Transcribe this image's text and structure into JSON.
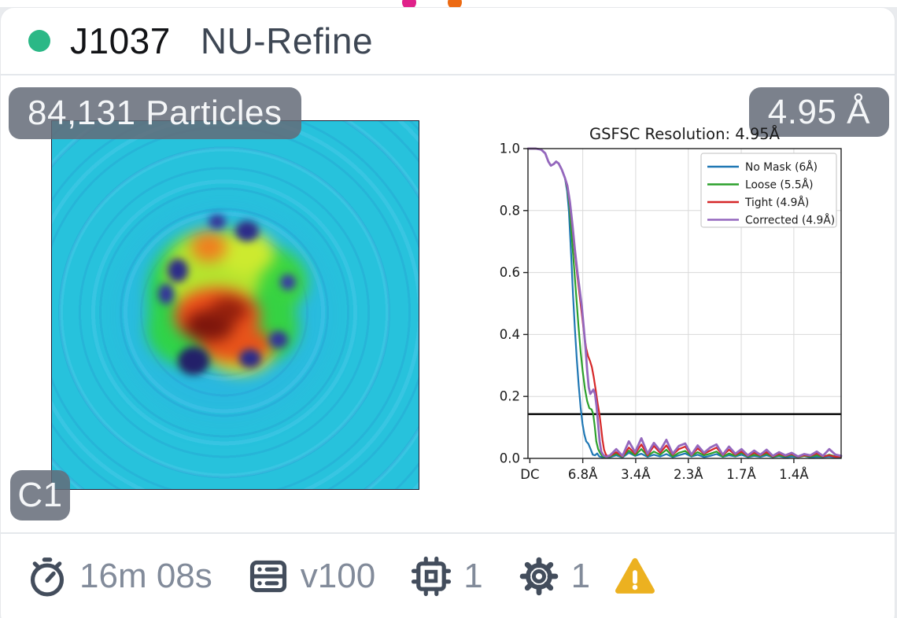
{
  "header": {
    "job_id": "J1037",
    "job_type": "NU-Refine",
    "status_color": "#2bb886"
  },
  "peek_dots": {
    "pink": "#e0218a",
    "orange": "#ec6a13"
  },
  "overlays": {
    "particle_count": "84,131 Particles",
    "resolution": "4.95 Å",
    "symmetry": "C1"
  },
  "footer": {
    "runtime": "16m 08s",
    "gpu_type": "v100",
    "gpu_count": "1",
    "param_count": "1",
    "warning_color": "#ecb120",
    "icon_color": "#434d5c"
  },
  "chart_data": {
    "type": "line",
    "title": "GSFSC Resolution: 4.95Å",
    "xlabel": "",
    "ylabel": "",
    "ylim": [
      0,
      1
    ],
    "grid": true,
    "grid_color": "#d9d9d9",
    "threshold": 0.143,
    "legend_position": "upper right",
    "y_axis": {
      "ticks": [
        {
          "label": "1.0",
          "v": 1.0
        },
        {
          "label": "0.8",
          "v": 0.8
        },
        {
          "label": "0.6",
          "v": 0.6
        },
        {
          "label": "0.4",
          "v": 0.4
        },
        {
          "label": "0.2",
          "v": 0.2
        },
        {
          "label": "0.0",
          "v": 0.0
        }
      ]
    },
    "x_axis": {
      "ticks": [
        {
          "label": "DC",
          "f": 0.006,
          "grid": false
        },
        {
          "label": "6.8Å",
          "f": 0.175,
          "grid": true
        },
        {
          "label": "3.4Å",
          "f": 0.344,
          "grid": true
        },
        {
          "label": "2.3Å",
          "f": 0.512,
          "grid": true
        },
        {
          "label": "1.7Å",
          "f": 0.681,
          "grid": true
        },
        {
          "label": "1.4Å",
          "f": 0.849,
          "grid": true
        }
      ]
    },
    "series": [
      {
        "name": "No Mask (6Å)",
        "color": "#1f77b4",
        "width": 2.2,
        "points": [
          [
            0.0,
            1.0
          ],
          [
            0.025,
            1.0
          ],
          [
            0.042,
            0.997
          ],
          [
            0.055,
            0.985
          ],
          [
            0.065,
            0.958
          ],
          [
            0.073,
            0.945
          ],
          [
            0.082,
            0.95
          ],
          [
            0.09,
            0.958
          ],
          [
            0.098,
            0.952
          ],
          [
            0.108,
            0.932
          ],
          [
            0.118,
            0.905
          ],
          [
            0.125,
            0.862
          ],
          [
            0.131,
            0.795
          ],
          [
            0.138,
            0.655
          ],
          [
            0.144,
            0.525
          ],
          [
            0.15,
            0.415
          ],
          [
            0.156,
            0.318
          ],
          [
            0.162,
            0.235
          ],
          [
            0.168,
            0.165
          ],
          [
            0.174,
            0.112
          ],
          [
            0.18,
            0.078
          ],
          [
            0.186,
            0.055
          ],
          [
            0.193,
            0.047
          ],
          [
            0.2,
            0.03
          ],
          [
            0.207,
            0.012
          ],
          [
            0.214,
            0.01
          ],
          [
            0.221,
            0.016
          ],
          [
            0.228,
            0.006
          ],
          [
            0.24,
            0.003
          ],
          [
            0.262,
            0.004
          ],
          [
            0.282,
            0.01
          ],
          [
            0.302,
            0.003
          ],
          [
            0.322,
            0.018
          ],
          [
            0.342,
            0.008
          ],
          [
            0.362,
            0.015
          ],
          [
            0.382,
            0.005
          ],
          [
            0.402,
            0.012
          ],
          [
            0.422,
            0.006
          ],
          [
            0.442,
            0.014
          ],
          [
            0.462,
            0.004
          ],
          [
            0.482,
            0.01
          ],
          [
            0.502,
            0.016
          ],
          [
            0.522,
            0.006
          ],
          [
            0.542,
            0.012
          ],
          [
            0.562,
            0.004
          ],
          [
            0.582,
            0.008
          ],
          [
            0.602,
            0.014
          ],
          [
            0.622,
            0.005
          ],
          [
            0.642,
            0.01
          ],
          [
            0.662,
            0.006
          ],
          [
            0.682,
            0.012
          ],
          [
            0.702,
            0.004
          ],
          [
            0.722,
            0.008
          ],
          [
            0.742,
            0.005
          ],
          [
            0.762,
            0.01
          ],
          [
            0.782,
            0.004
          ],
          [
            0.802,
            0.007
          ],
          [
            0.822,
            0.003
          ],
          [
            0.842,
            0.006
          ],
          [
            0.862,
            0.004
          ],
          [
            0.882,
            0.008
          ],
          [
            0.902,
            0.003
          ],
          [
            0.922,
            0.005
          ],
          [
            0.942,
            0.004
          ],
          [
            0.962,
            0.006
          ],
          [
            0.982,
            0.003
          ],
          [
            1.0,
            0.004
          ]
        ]
      },
      {
        "name": "Loose (5.5Å)",
        "color": "#2ca02c",
        "width": 2.2,
        "points": [
          [
            0.0,
            1.0
          ],
          [
            0.025,
            1.0
          ],
          [
            0.042,
            0.997
          ],
          [
            0.055,
            0.985
          ],
          [
            0.065,
            0.958
          ],
          [
            0.073,
            0.945
          ],
          [
            0.082,
            0.95
          ],
          [
            0.09,
            0.958
          ],
          [
            0.098,
            0.952
          ],
          [
            0.108,
            0.932
          ],
          [
            0.118,
            0.905
          ],
          [
            0.126,
            0.87
          ],
          [
            0.133,
            0.81
          ],
          [
            0.14,
            0.715
          ],
          [
            0.147,
            0.62
          ],
          [
            0.154,
            0.525
          ],
          [
            0.161,
            0.43
          ],
          [
            0.168,
            0.345
          ],
          [
            0.175,
            0.28
          ],
          [
            0.182,
            0.225
          ],
          [
            0.189,
            0.185
          ],
          [
            0.196,
            0.162
          ],
          [
            0.203,
            0.158
          ],
          [
            0.208,
            0.145
          ],
          [
            0.213,
            0.105
          ],
          [
            0.218,
            0.055
          ],
          [
            0.224,
            0.03
          ],
          [
            0.23,
            0.018
          ],
          [
            0.237,
            0.008
          ],
          [
            0.245,
            0.004
          ],
          [
            0.262,
            0.006
          ],
          [
            0.282,
            0.015
          ],
          [
            0.302,
            0.005
          ],
          [
            0.322,
            0.025
          ],
          [
            0.342,
            0.01
          ],
          [
            0.362,
            0.03
          ],
          [
            0.382,
            0.008
          ],
          [
            0.402,
            0.022
          ],
          [
            0.422,
            0.012
          ],
          [
            0.442,
            0.028
          ],
          [
            0.462,
            0.006
          ],
          [
            0.482,
            0.018
          ],
          [
            0.502,
            0.024
          ],
          [
            0.522,
            0.008
          ],
          [
            0.542,
            0.02
          ],
          [
            0.562,
            0.01
          ],
          [
            0.582,
            0.015
          ],
          [
            0.602,
            0.022
          ],
          [
            0.622,
            0.006
          ],
          [
            0.642,
            0.016
          ],
          [
            0.662,
            0.008
          ],
          [
            0.682,
            0.018
          ],
          [
            0.702,
            0.006
          ],
          [
            0.722,
            0.012
          ],
          [
            0.742,
            0.008
          ],
          [
            0.762,
            0.015
          ],
          [
            0.782,
            0.005
          ],
          [
            0.802,
            0.01
          ],
          [
            0.822,
            0.006
          ],
          [
            0.842,
            0.012
          ],
          [
            0.862,
            0.004
          ],
          [
            0.882,
            0.008
          ],
          [
            0.902,
            0.006
          ],
          [
            0.922,
            0.01
          ],
          [
            0.942,
            0.005
          ],
          [
            0.962,
            0.012
          ],
          [
            0.982,
            0.006
          ],
          [
            1.0,
            0.005
          ]
        ]
      },
      {
        "name": "Tight (4.9Å)",
        "color": "#d62728",
        "width": 2.2,
        "points": [
          [
            0.0,
            1.0
          ],
          [
            0.025,
            1.0
          ],
          [
            0.042,
            0.997
          ],
          [
            0.055,
            0.985
          ],
          [
            0.065,
            0.958
          ],
          [
            0.073,
            0.945
          ],
          [
            0.082,
            0.95
          ],
          [
            0.09,
            0.958
          ],
          [
            0.098,
            0.952
          ],
          [
            0.108,
            0.932
          ],
          [
            0.118,
            0.905
          ],
          [
            0.126,
            0.875
          ],
          [
            0.134,
            0.82
          ],
          [
            0.142,
            0.745
          ],
          [
            0.15,
            0.66
          ],
          [
            0.158,
            0.585
          ],
          [
            0.165,
            0.525
          ],
          [
            0.172,
            0.465
          ],
          [
            0.179,
            0.405
          ],
          [
            0.186,
            0.355
          ],
          [
            0.192,
            0.33
          ],
          [
            0.198,
            0.315
          ],
          [
            0.204,
            0.295
          ],
          [
            0.21,
            0.262
          ],
          [
            0.216,
            0.222
          ],
          [
            0.222,
            0.18
          ],
          [
            0.228,
            0.145
          ],
          [
            0.233,
            0.105
          ],
          [
            0.238,
            0.06
          ],
          [
            0.243,
            0.028
          ],
          [
            0.249,
            0.012
          ],
          [
            0.256,
            0.006
          ],
          [
            0.262,
            0.008
          ],
          [
            0.282,
            0.02
          ],
          [
            0.302,
            0.006
          ],
          [
            0.322,
            0.035
          ],
          [
            0.342,
            0.015
          ],
          [
            0.362,
            0.045
          ],
          [
            0.382,
            0.01
          ],
          [
            0.402,
            0.04
          ],
          [
            0.422,
            0.018
          ],
          [
            0.442,
            0.042
          ],
          [
            0.462,
            0.012
          ],
          [
            0.482,
            0.03
          ],
          [
            0.502,
            0.038
          ],
          [
            0.522,
            0.01
          ],
          [
            0.542,
            0.032
          ],
          [
            0.562,
            0.015
          ],
          [
            0.582,
            0.025
          ],
          [
            0.602,
            0.035
          ],
          [
            0.622,
            0.01
          ],
          [
            0.642,
            0.028
          ],
          [
            0.662,
            0.012
          ],
          [
            0.682,
            0.022
          ],
          [
            0.702,
            0.008
          ],
          [
            0.722,
            0.018
          ],
          [
            0.742,
            0.01
          ],
          [
            0.762,
            0.02
          ],
          [
            0.782,
            0.006
          ],
          [
            0.802,
            0.015
          ],
          [
            0.822,
            0.008
          ],
          [
            0.842,
            0.014
          ],
          [
            0.862,
            0.005
          ],
          [
            0.882,
            0.01
          ],
          [
            0.902,
            0.008
          ],
          [
            0.922,
            0.016
          ],
          [
            0.942,
            0.006
          ],
          [
            0.962,
            0.01
          ],
          [
            0.982,
            0.005
          ],
          [
            1.0,
            0.006
          ]
        ]
      },
      {
        "name": "Corrected (4.9Å)",
        "color": "#9467bd",
        "width": 2.8,
        "points": [
          [
            0.0,
            1.0
          ],
          [
            0.025,
            1.0
          ],
          [
            0.042,
            0.997
          ],
          [
            0.055,
            0.985
          ],
          [
            0.065,
            0.958
          ],
          [
            0.073,
            0.945
          ],
          [
            0.082,
            0.95
          ],
          [
            0.09,
            0.958
          ],
          [
            0.098,
            0.952
          ],
          [
            0.108,
            0.932
          ],
          [
            0.118,
            0.905
          ],
          [
            0.126,
            0.88
          ],
          [
            0.134,
            0.828
          ],
          [
            0.142,
            0.755
          ],
          [
            0.15,
            0.672
          ],
          [
            0.158,
            0.6
          ],
          [
            0.165,
            0.545
          ],
          [
            0.172,
            0.488
          ],
          [
            0.178,
            0.425
          ],
          [
            0.184,
            0.355
          ],
          [
            0.189,
            0.285
          ],
          [
            0.194,
            0.23
          ],
          [
            0.199,
            0.208
          ],
          [
            0.204,
            0.215
          ],
          [
            0.209,
            0.222
          ],
          [
            0.214,
            0.208
          ],
          [
            0.219,
            0.168
          ],
          [
            0.224,
            0.11
          ],
          [
            0.229,
            0.055
          ],
          [
            0.234,
            0.022
          ],
          [
            0.241,
            0.01
          ],
          [
            0.25,
            0.005
          ],
          [
            0.262,
            0.01
          ],
          [
            0.282,
            0.03
          ],
          [
            0.302,
            0.008
          ],
          [
            0.322,
            0.055
          ],
          [
            0.342,
            0.02
          ],
          [
            0.362,
            0.065
          ],
          [
            0.382,
            0.015
          ],
          [
            0.402,
            0.05
          ],
          [
            0.422,
            0.025
          ],
          [
            0.442,
            0.06
          ],
          [
            0.462,
            0.015
          ],
          [
            0.482,
            0.04
          ],
          [
            0.502,
            0.048
          ],
          [
            0.522,
            0.012
          ],
          [
            0.542,
            0.042
          ],
          [
            0.562,
            0.018
          ],
          [
            0.582,
            0.035
          ],
          [
            0.602,
            0.045
          ],
          [
            0.622,
            0.012
          ],
          [
            0.642,
            0.038
          ],
          [
            0.662,
            0.015
          ],
          [
            0.682,
            0.03
          ],
          [
            0.702,
            0.01
          ],
          [
            0.722,
            0.025
          ],
          [
            0.742,
            0.012
          ],
          [
            0.762,
            0.028
          ],
          [
            0.782,
            0.008
          ],
          [
            0.802,
            0.02
          ],
          [
            0.822,
            0.01
          ],
          [
            0.842,
            0.018
          ],
          [
            0.862,
            0.006
          ],
          [
            0.882,
            0.014
          ],
          [
            0.902,
            0.01
          ],
          [
            0.922,
            0.022
          ],
          [
            0.942,
            0.008
          ],
          [
            0.962,
            0.03
          ],
          [
            0.982,
            0.012
          ],
          [
            1.0,
            0.008
          ]
        ]
      }
    ]
  }
}
